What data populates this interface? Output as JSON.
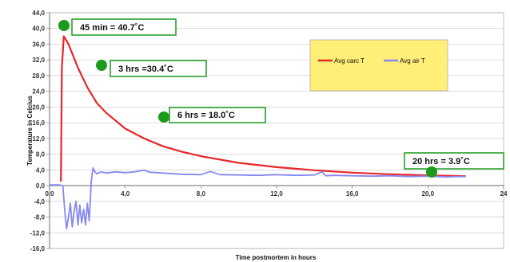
{
  "chart_data": {
    "type": "line",
    "xlabel": "Time postmortem in hours",
    "ylabel": "Temperature in Celcius",
    "xlim": [
      0,
      24
    ],
    "ylim": [
      -16,
      44
    ],
    "x_ticks": [
      "0,0",
      "4,0",
      "8,0",
      "12,0",
      "16,0",
      "20,0",
      "24"
    ],
    "x_tick_values": [
      0,
      4,
      8,
      12,
      16,
      20,
      24
    ],
    "y_ticks": [
      "-16,0",
      "-12,0",
      "-8,0",
      "-4,0",
      "0,0",
      "4,0",
      "8,0",
      "12,0",
      "16,0",
      "20,0",
      "24,0",
      "28,0",
      "32,0",
      "36,0",
      "40,0",
      "44,0"
    ],
    "y_tick_values": [
      -16,
      -12,
      -8,
      -4,
      0,
      4,
      8,
      12,
      16,
      20,
      24,
      28,
      32,
      36,
      40,
      44
    ],
    "grid": "horizontal",
    "legend": {
      "placement": "top-right",
      "background": "#FFEE77",
      "entries": [
        "Avg carc T",
        "Avg air T"
      ]
    },
    "series": [
      {
        "name": "Avg carc T",
        "color": "#E8262A",
        "x": [
          0.6,
          0.65,
          0.75,
          1.0,
          1.25,
          1.5,
          2.0,
          2.5,
          3.0,
          4.0,
          5.0,
          6.0,
          7.0,
          8.0,
          10.0,
          12.0,
          14.0,
          16.0,
          18.0,
          20.0,
          22.0
        ],
        "y": [
          1.0,
          30.0,
          38.0,
          36.0,
          33.0,
          30.0,
          25.0,
          21.0,
          18.5,
          14.5,
          12.0,
          10.0,
          8.6,
          7.5,
          5.8,
          4.7,
          3.9,
          3.3,
          2.9,
          2.6,
          2.4
        ]
      },
      {
        "name": "Avg air T",
        "color": "#8888F0",
        "x": [
          0.0,
          0.5,
          0.7,
          0.8,
          0.9,
          1.0,
          1.1,
          1.2,
          1.3,
          1.4,
          1.5,
          1.6,
          1.7,
          1.8,
          1.9,
          2.0,
          2.1,
          2.2,
          2.3,
          2.4,
          2.5,
          2.7,
          3.0,
          3.5,
          4.0,
          4.5,
          5.0,
          5.3,
          6.0,
          7.0,
          8.0,
          8.5,
          9.0,
          10.0,
          11.0,
          12.0,
          13.0,
          14.0,
          14.4,
          14.6,
          15.0,
          16.0,
          17.0,
          18.0,
          19.0,
          20.0,
          21.0,
          21.5,
          22.0
        ],
        "y": [
          0.2,
          0.2,
          0.0,
          -6.0,
          -11.0,
          -8.0,
          -4.5,
          -10.5,
          -6.5,
          -4.0,
          -10.0,
          -5.0,
          -9.5,
          -6.0,
          -10.0,
          -4.5,
          -9.0,
          1.0,
          4.5,
          3.5,
          3.0,
          3.5,
          3.2,
          3.5,
          3.3,
          3.5,
          3.9,
          3.4,
          3.2,
          2.9,
          2.8,
          3.6,
          2.8,
          2.7,
          2.6,
          2.8,
          2.6,
          2.7,
          3.5,
          2.5,
          2.6,
          2.5,
          2.4,
          2.5,
          2.3,
          2.4,
          2.2,
          2.3,
          2.3
        ]
      }
    ],
    "annotations": [
      {
        "text": "45 min = 40.7˚C",
        "x": 0.75,
        "y": 40.7,
        "marker_color": "#1C9A1C",
        "border_color": "#1C9A1C"
      },
      {
        "text": "3 hrs =30.4˚C",
        "x": 3.0,
        "y": 30.4,
        "marker_color": "#1C9A1C",
        "border_color": "#1C9A1C"
      },
      {
        "text": "6 hrs = 18.0˚C",
        "x": 6.0,
        "y": 18.0,
        "marker_color": "#1C9A1C",
        "border_color": "#1C9A1C"
      },
      {
        "text": "20 hrs = 3.9˚C",
        "x": 20.0,
        "y": 3.9,
        "marker_color": "#1C9A1C",
        "border_color": "#1C9A1C"
      }
    ]
  }
}
